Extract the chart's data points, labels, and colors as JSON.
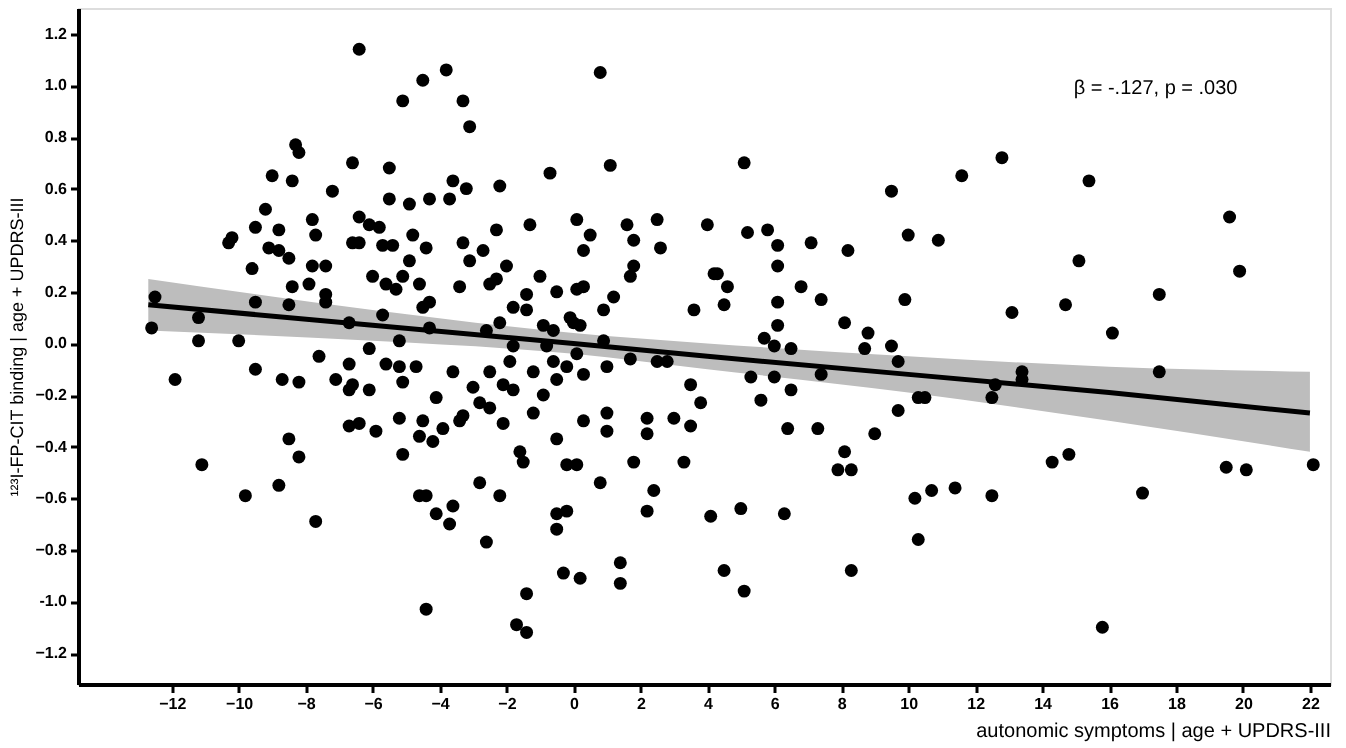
{
  "chart_data": {
    "type": "scatter",
    "xlabel": "autonomic symptoms | age + UPDRS-III",
    "ylabel": "¹²³I-FP-CIT binding | age + UPDRS-III",
    "annotations": [
      "β = -.127, p = .030"
    ],
    "xlim": [
      -14.8,
      22.6
    ],
    "ylim": [
      -1.32,
      1.3
    ],
    "xticks": [
      -12,
      -10,
      -8,
      -6,
      -4,
      -2,
      0,
      2,
      4,
      6,
      8,
      10,
      12,
      14,
      16,
      18,
      20,
      22
    ],
    "yticks": [
      -1.2,
      {
        "value": -1.0,
        "label": "-1.0"
      },
      -0.8,
      -0.6,
      -0.4,
      -0.2,
      {
        "value": 0,
        "label": "0.0"
      },
      0.2,
      0.4,
      0.6,
      0.8,
      {
        "value": 1.0,
        "label": "1.0"
      },
      1.2
    ],
    "grid": false,
    "marker": "circle",
    "series": [
      {
        "type": "scatter",
        "color": "#000000",
        "x": [
          -12.5,
          -12.6,
          -11.9,
          -11.2,
          -11.2,
          -11.1,
          -10.3,
          -10.2,
          -10.0,
          -9.8,
          -9.6,
          -9.5,
          -9.5,
          -9.5,
          -9.2,
          -9.1,
          -9.0,
          -8.8,
          -8.8,
          -8.8,
          -8.7,
          -8.5,
          -8.5,
          -8.5,
          -8.4,
          -8.4,
          -8.3,
          -8.2,
          -8.2,
          -8.2,
          -7.9,
          -7.8,
          -7.7,
          -7.7,
          -7.8,
          -7.6,
          -7.4,
          -7.4,
          -7.4,
          -7.2,
          -7.1,
          -6.7,
          -6.7,
          -6.6,
          -6.7,
          -6.7,
          -6.4,
          -6.4,
          -6.4,
          -6.6,
          -6.6,
          -6.4,
          -6.1,
          -6.1,
          -6.1,
          -6.0,
          -5.9,
          -5.8,
          -5.7,
          -5.7,
          -5.6,
          -5.5,
          -5.5,
          -5.4,
          -5.6,
          -5.3,
          -5.2,
          -5.2,
          -5.2,
          -5.1,
          -5.1,
          -5.1,
          -5.1,
          -4.9,
          -4.9,
          -4.8,
          -4.7,
          -4.6,
          -4.6,
          -4.5,
          -4.6,
          -4.5,
          -4.5,
          -4.4,
          -4.4,
          -4.3,
          -4.4,
          -4.3,
          -4.3,
          -4.2,
          -4.1,
          -4.1,
          -3.9,
          -3.8,
          -3.7,
          -3.6,
          -3.6,
          -3.6,
          -3.7,
          -3.4,
          -3.4,
          -3.3,
          -3.3,
          -3.3,
          -3.2,
          -3.1,
          -3.1,
          -3.0,
          -2.8,
          -2.8,
          -2.7,
          -2.2,
          -2.3,
          -2.0,
          -2.3,
          -2.5,
          -2.6,
          -2.5,
          -2.2,
          -2.1,
          -1.8,
          -1.9,
          -2.5,
          -2.1,
          -2.2,
          -2.6,
          -1.8,
          -1.8,
          -1.4,
          -1.7,
          -1.4,
          -1.6,
          -1.5,
          -1.4,
          -1.4,
          -1.3,
          -1.2,
          -1.2,
          -1.0,
          -0.9,
          -0.9,
          -0.8,
          -0.7,
          -0.6,
          -0.5,
          -0.6,
          -0.5,
          -0.5,
          -0.5,
          -0.5,
          -0.2,
          -0.3,
          -0.2,
          -0.1,
          0.0,
          -0.2,
          0.1,
          0.1,
          0.1,
          0.2,
          0.1,
          0.2,
          0.3,
          0.3,
          0.3,
          0.3,
          0.5,
          0.8,
          0.8,
          0.9,
          0.9,
          1.0,
          1.0,
          1.0,
          1.1,
          1.2,
          1.4,
          1.4,
          1.6,
          1.7,
          1.7,
          1.8,
          1.8,
          1.8,
          2.2,
          2.2,
          2.2,
          2.4,
          2.5,
          2.6,
          2.5,
          2.8,
          3.0,
          3.3,
          3.5,
          3.5,
          3.6,
          3.8,
          4.0,
          4.1,
          4.2,
          4.3,
          4.5,
          4.6,
          4.5,
          5.0,
          5.1,
          5.1,
          5.2,
          5.3,
          5.6,
          5.7,
          5.8,
          6.0,
          6.0,
          6.1,
          6.1,
          6.1,
          6.1,
          6.3,
          6.4,
          6.5,
          6.5,
          6.8,
          7.1,
          7.3,
          7.4,
          7.4,
          7.9,
          8.1,
          8.3,
          8.2,
          8.1,
          8.3,
          8.7,
          8.8,
          9.0,
          9.5,
          9.5,
          9.7,
          9.9,
          10.0,
          9.7,
          10.2,
          10.3,
          10.3,
          10.5,
          10.7,
          10.9,
          11.4,
          11.6,
          12.5,
          12.5,
          12.6,
          12.8,
          13.1,
          13.4,
          13.4,
          14.3,
          14.7,
          14.8,
          15.1,
          15.4,
          15.8,
          16.1,
          17.0,
          17.5,
          17.5,
          19.5,
          19.6,
          19.9,
          20.1,
          22.1
        ],
        "values": [
          0.18,
          0.06,
          -0.14,
          0.1,
          0.01,
          -0.47,
          0.39,
          0.41,
          0.01,
          -0.59,
          0.29,
          0.45,
          0.16,
          -0.1,
          0.52,
          0.37,
          0.65,
          0.36,
          0.44,
          -0.55,
          -0.14,
          0.33,
          -0.37,
          0.15,
          0.22,
          0.63,
          0.77,
          0.74,
          -0.15,
          -0.44,
          0.23,
          0.48,
          -0.69,
          0.42,
          0.3,
          -0.05,
          0.3,
          0.19,
          0.16,
          0.59,
          -0.14,
          0.08,
          -0.08,
          -0.16,
          -0.18,
          -0.32,
          1.14,
          -0.31,
          0.49,
          0.7,
          0.39,
          0.39,
          -0.02,
          0.46,
          -0.18,
          0.26,
          -0.34,
          0.45,
          0.11,
          0.38,
          -0.08,
          0.68,
          0.56,
          0.38,
          0.23,
          0.21,
          0.01,
          -0.29,
          -0.09,
          0.94,
          -0.15,
          -0.43,
          0.26,
          0.54,
          0.32,
          0.42,
          -0.09,
          -0.36,
          0.23,
          0.14,
          -0.59,
          1.02,
          -0.3,
          0.37,
          -1.03,
          0.56,
          -0.59,
          0.06,
          0.16,
          -0.38,
          -0.21,
          -0.66,
          -0.33,
          1.06,
          0.56,
          -0.11,
          0.63,
          -0.63,
          -0.7,
          0.22,
          -0.3,
          0.94,
          -0.28,
          0.39,
          0.6,
          0.84,
          0.32,
          -0.17,
          -0.23,
          -0.54,
          0.36,
          0.61,
          0.44,
          0.3,
          0.25,
          0.23,
          0.05,
          -0.11,
          0.08,
          -0.16,
          -0.18,
          -0.07,
          -0.25,
          -0.31,
          -0.59,
          -0.77,
          0.14,
          -0.01,
          -0.97,
          -1.09,
          -1.12,
          -0.42,
          -0.46,
          0.13,
          0.19,
          0.46,
          -0.11,
          -0.27,
          0.26,
          -0.2,
          0.07,
          -0.01,
          0.66,
          0.05,
          0.2,
          -0.07,
          -0.14,
          -0.37,
          -0.66,
          -0.72,
          -0.65,
          -0.89,
          -0.09,
          0.1,
          0.08,
          -0.47,
          -0.47,
          0.48,
          0.21,
          0.07,
          -0.04,
          -0.91,
          0.36,
          0.22,
          -0.3,
          -0.12,
          0.42,
          -0.54,
          1.05,
          0.01,
          0.13,
          -0.09,
          -0.27,
          -0.34,
          0.69,
          0.18,
          -0.85,
          -0.93,
          0.46,
          -0.06,
          0.26,
          0.4,
          0.3,
          -0.46,
          -0.29,
          -0.35,
          -0.65,
          -0.57,
          0.48,
          0.37,
          -0.07,
          -0.07,
          -0.29,
          -0.46,
          -0.16,
          -0.32,
          0.13,
          -0.23,
          0.46,
          -0.67,
          0.27,
          0.27,
          0.15,
          0.22,
          -0.88,
          -0.64,
          0.7,
          -0.96,
          0.43,
          -0.13,
          -0.22,
          0.02,
          0.44,
          -0.01,
          -0.13,
          0.38,
          0.3,
          0.16,
          0.07,
          -0.66,
          -0.33,
          -0.02,
          -0.18,
          0.22,
          0.39,
          -0.33,
          -0.12,
          0.17,
          -0.49,
          -0.42,
          -0.49,
          0.36,
          0.08,
          -0.88,
          -0.02,
          0.04,
          -0.35,
          0.59,
          -0.01,
          -0.07,
          0.17,
          0.42,
          -0.26,
          -0.6,
          -0.21,
          -0.76,
          -0.21,
          -0.57,
          0.4,
          -0.56,
          0.65,
          -0.21,
          -0.59,
          -0.16,
          0.72,
          0.12,
          -0.11,
          -0.14,
          -0.46,
          0.15,
          -0.43,
          0.32,
          0.63,
          -1.1,
          0.04,
          -0.58,
          0.19,
          -0.11,
          -0.48,
          0.49,
          0.28,
          -0.49,
          -0.47
        ]
      },
      {
        "type": "line",
        "color": "#000000",
        "marker": "none",
        "x": [
          -12.7,
          -6,
          0,
          4,
          10,
          16,
          22
        ],
        "values": [
          0.15,
          0.07,
          0.0,
          -0.05,
          -0.12,
          -0.19,
          -0.27
        ],
        "lower": [
          0.05,
          0.01,
          -0.04,
          -0.1,
          -0.19,
          -0.3,
          -0.42
        ],
        "upper": [
          0.25,
          0.13,
          0.04,
          0.0,
          -0.05,
          -0.09,
          -0.11
        ]
      }
    ]
  }
}
